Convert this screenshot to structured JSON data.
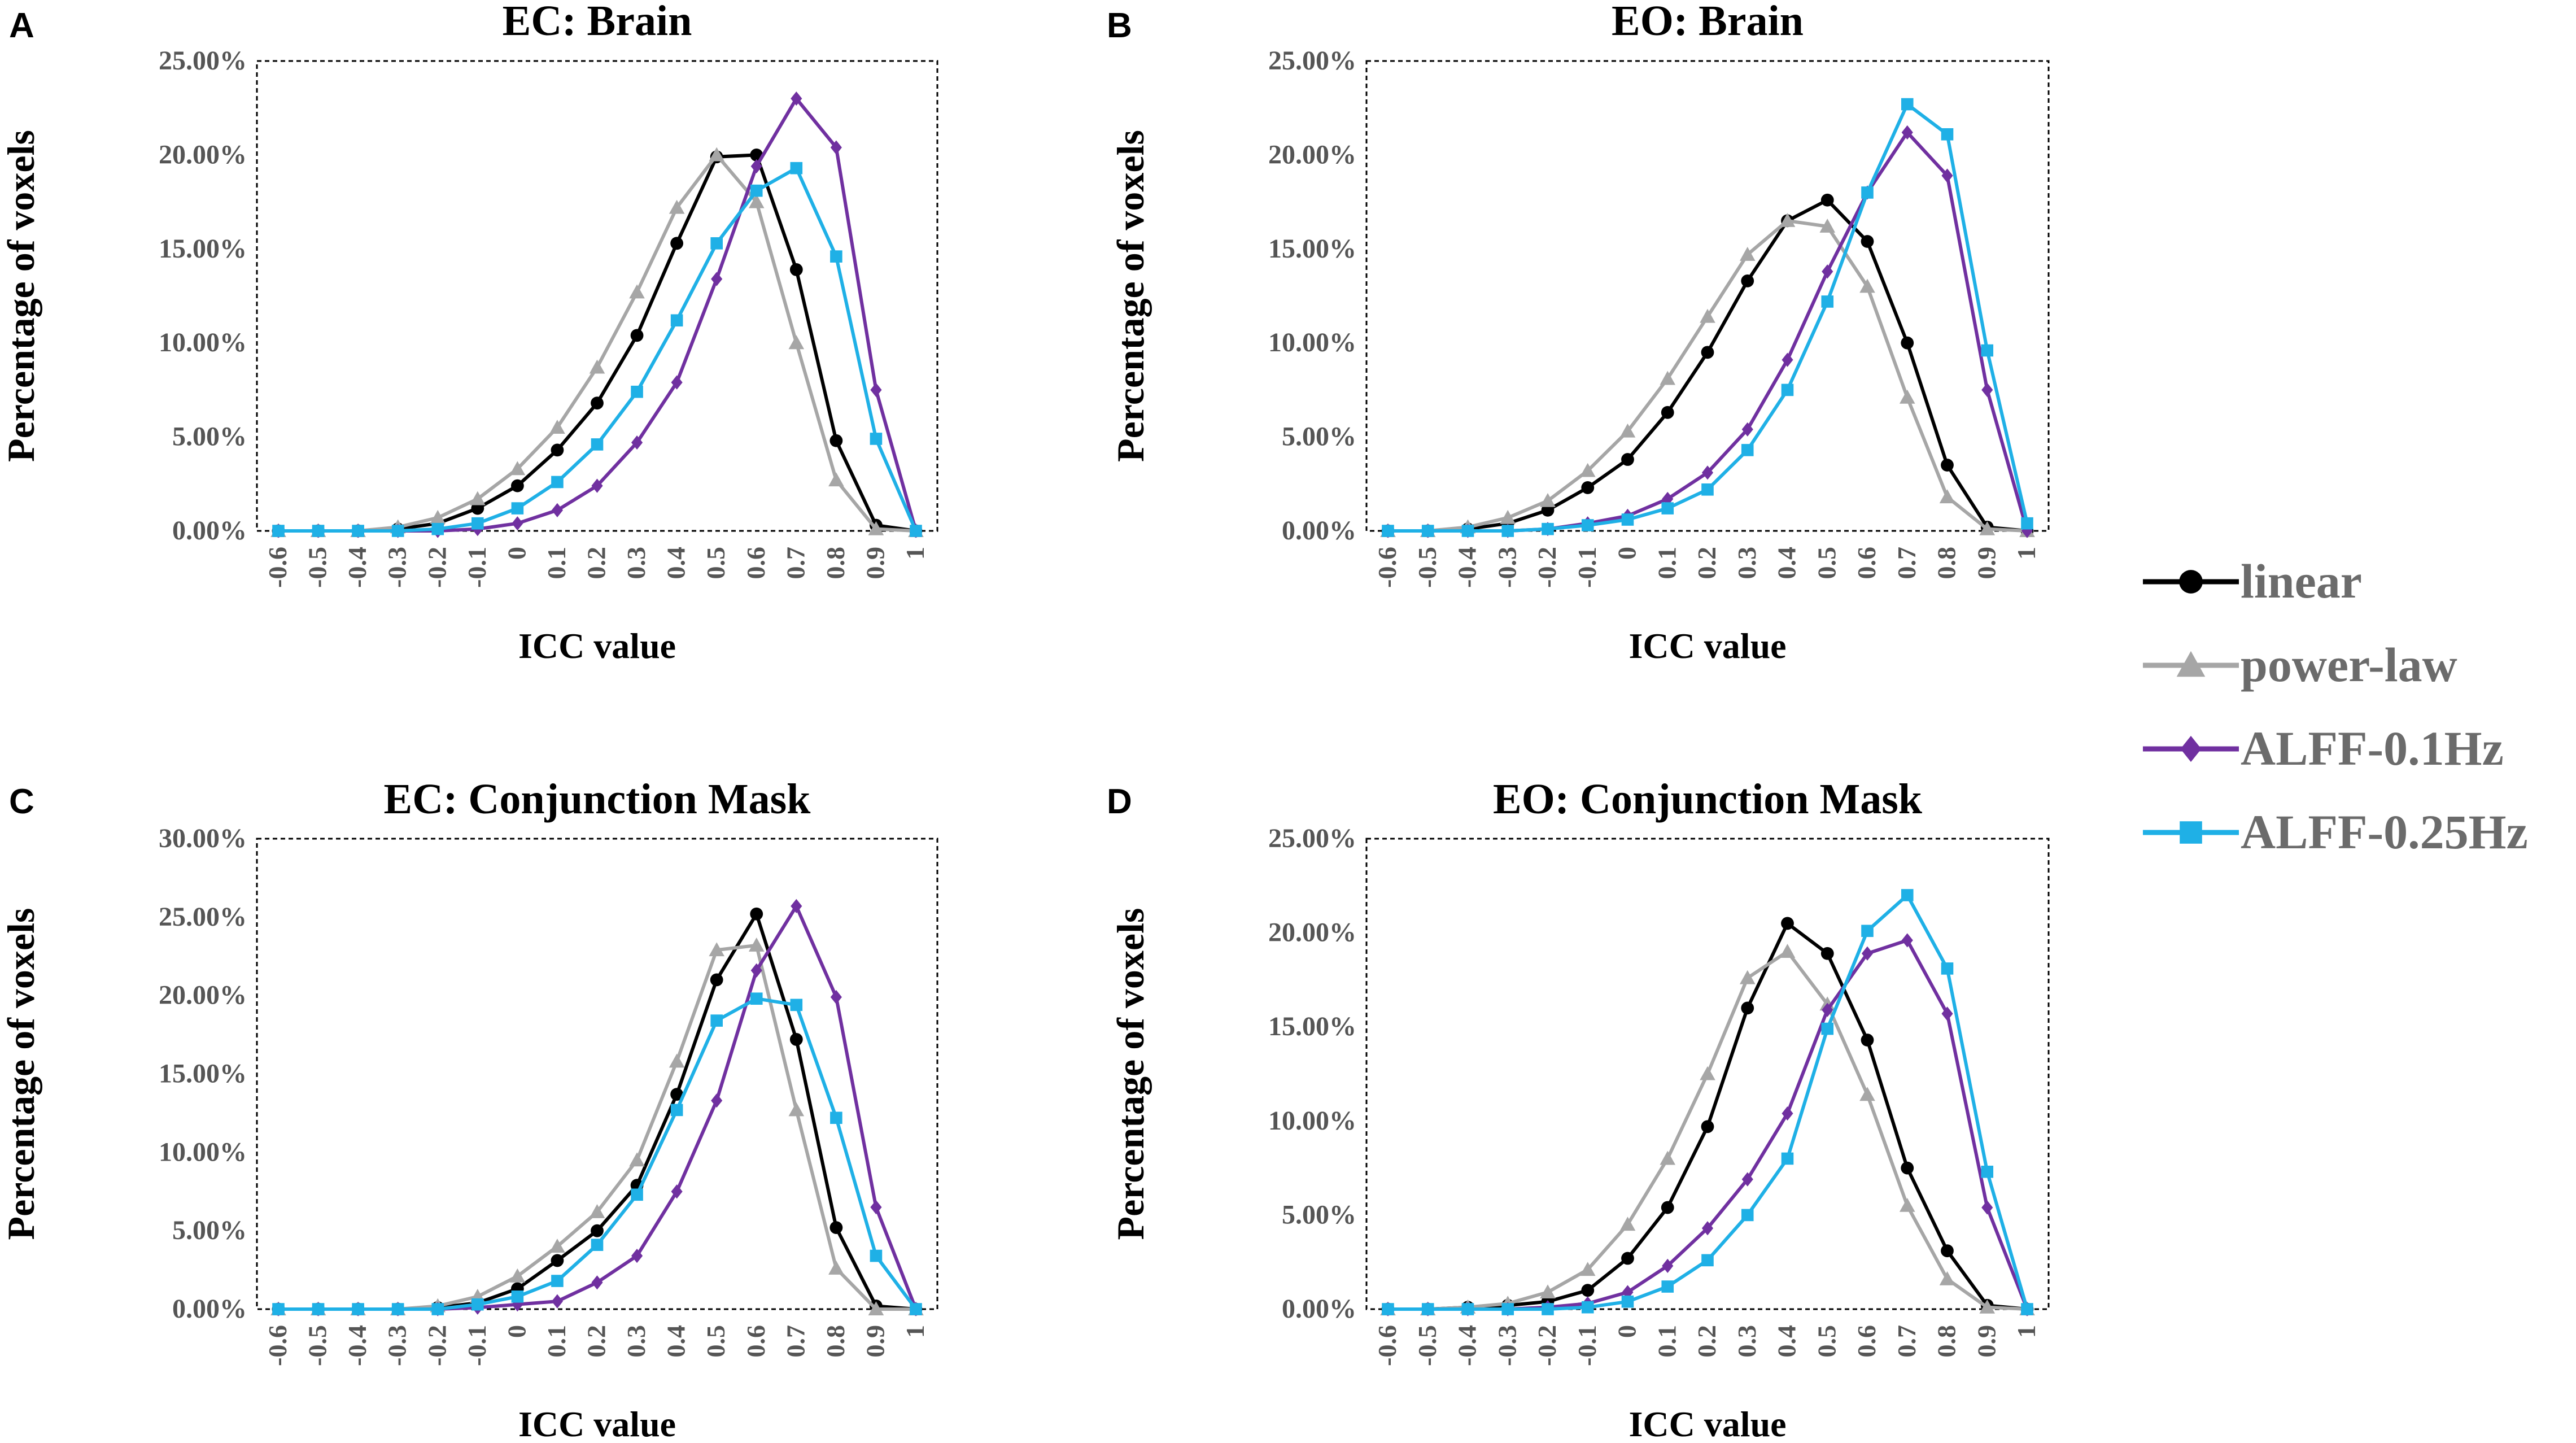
{
  "x_categories": [
    "-0.6",
    "-0.5",
    "-0.4",
    "-0.3",
    "-0.2",
    "-0.1",
    "0",
    "0.1",
    "0.2",
    "0.3",
    "0.4",
    "0.5",
    "0.6",
    "0.7",
    "0.8",
    "0.9",
    "1"
  ],
  "legend": {
    "entries": [
      {
        "name": "linear",
        "color": "#000000",
        "marker": "circle"
      },
      {
        "name": "power-law",
        "color": "#a6a6a6",
        "marker": "triangle"
      },
      {
        "name": "ALFF-0.1Hz",
        "color": "#7030a0",
        "marker": "diamond"
      },
      {
        "name": "ALFF-0.25Hz",
        "color": "#1fb0e6",
        "marker": "square"
      }
    ]
  },
  "chart_data": [
    {
      "panel_letter": "A",
      "type": "line",
      "title": "EC: Brain",
      "xlabel": "ICC value",
      "ylabel": "Percentage of voxels",
      "ylim": [
        0,
        25
      ],
      "yticks": [
        "0.00%",
        "5.00%",
        "10.00%",
        "15.00%",
        "20.00%",
        "25.00%"
      ],
      "categories": [
        "-0.6",
        "-0.5",
        "-0.4",
        "-0.3",
        "-0.2",
        "-0.1",
        "0",
        "0.1",
        "0.2",
        "0.3",
        "0.4",
        "0.5",
        "0.6",
        "0.7",
        "0.8",
        "0.9",
        "1"
      ],
      "series": [
        {
          "name": "linear",
          "values": [
            0,
            0,
            0,
            0.1,
            0.4,
            1.2,
            2.4,
            4.3,
            6.8,
            10.4,
            15.3,
            19.9,
            20.0,
            13.9,
            4.8,
            0.3,
            0
          ]
        },
        {
          "name": "power-law",
          "values": [
            0,
            0,
            0,
            0.2,
            0.7,
            1.7,
            3.3,
            5.5,
            8.7,
            12.7,
            17.2,
            20.0,
            17.5,
            10.0,
            2.7,
            0.1,
            0
          ]
        },
        {
          "name": "ALFF-0.1Hz",
          "values": [
            0,
            0,
            0,
            0,
            0,
            0.1,
            0.4,
            1.1,
            2.4,
            4.7,
            7.9,
            13.4,
            19.4,
            23.0,
            20.4,
            7.5,
            0
          ]
        },
        {
          "name": "ALFF-0.25Hz",
          "values": [
            0,
            0,
            0,
            0,
            0.1,
            0.4,
            1.2,
            2.6,
            4.6,
            7.4,
            11.2,
            15.3,
            18.1,
            19.3,
            14.6,
            4.9,
            0
          ]
        }
      ]
    },
    {
      "panel_letter": "B",
      "type": "line",
      "title": "EO: Brain",
      "xlabel": "ICC value",
      "ylabel": "Percentage of voxels",
      "ylim": [
        0,
        25
      ],
      "yticks": [
        "0.00%",
        "5.00%",
        "10.00%",
        "15.00%",
        "20.00%",
        "25.00%"
      ],
      "categories": [
        "-0.6",
        "-0.5",
        "-0.4",
        "-0.3",
        "-0.2",
        "-0.1",
        "0",
        "0.1",
        "0.2",
        "0.3",
        "0.4",
        "0.5",
        "0.6",
        "0.7",
        "0.8",
        "0.9",
        "1"
      ],
      "series": [
        {
          "name": "linear",
          "values": [
            0,
            0,
            0.1,
            0.4,
            1.1,
            2.3,
            3.8,
            6.3,
            9.5,
            13.3,
            16.5,
            17.6,
            15.4,
            10.0,
            3.5,
            0.2,
            0
          ]
        },
        {
          "name": "power-law",
          "values": [
            0,
            0,
            0.2,
            0.7,
            1.6,
            3.2,
            5.3,
            8.1,
            11.4,
            14.7,
            16.5,
            16.2,
            13.0,
            7.1,
            1.8,
            0.1,
            0
          ]
        },
        {
          "name": "ALFF-0.1Hz",
          "values": [
            0,
            0,
            0,
            0,
            0.1,
            0.4,
            0.8,
            1.7,
            3.1,
            5.4,
            9.1,
            13.8,
            18.0,
            21.2,
            18.9,
            7.5,
            0
          ]
        },
        {
          "name": "ALFF-0.25Hz",
          "values": [
            0,
            0,
            0,
            0,
            0.1,
            0.3,
            0.6,
            1.2,
            2.2,
            4.3,
            7.5,
            12.2,
            18.0,
            22.7,
            21.1,
            9.6,
            0.4
          ]
        }
      ]
    },
    {
      "panel_letter": "C",
      "type": "line",
      "title": "EC: Conjunction Mask",
      "xlabel": "ICC value",
      "ylabel": "Percentage of voxels",
      "ylim": [
        0,
        30
      ],
      "yticks": [
        "0.00%",
        "5.00%",
        "10.00%",
        "15.00%",
        "20.00%",
        "25.00%",
        "30.00%"
      ],
      "categories": [
        "-0.6",
        "-0.5",
        "-0.4",
        "-0.3",
        "-0.2",
        "-0.1",
        "0",
        "0.1",
        "0.2",
        "0.3",
        "0.4",
        "0.5",
        "0.6",
        "0.7",
        "0.8",
        "0.9",
        "1"
      ],
      "series": [
        {
          "name": "linear",
          "values": [
            0,
            0,
            0,
            0,
            0.1,
            0.4,
            1.3,
            3.1,
            5.0,
            7.9,
            13.7,
            21.0,
            25.2,
            17.2,
            5.2,
            0.2,
            0
          ]
        },
        {
          "name": "power-law",
          "values": [
            0,
            0,
            0,
            0,
            0.2,
            0.8,
            2.1,
            4.0,
            6.2,
            9.5,
            15.8,
            22.9,
            23.2,
            12.7,
            2.6,
            0,
            0
          ]
        },
        {
          "name": "ALFF-0.1Hz",
          "values": [
            0,
            0,
            0,
            0,
            0,
            0.1,
            0.3,
            0.5,
            1.7,
            3.4,
            7.5,
            13.3,
            21.6,
            25.7,
            19.9,
            6.5,
            0
          ]
        },
        {
          "name": "ALFF-0.25Hz",
          "values": [
            0,
            0,
            0,
            0,
            0,
            0.3,
            0.8,
            1.8,
            4.1,
            7.3,
            12.7,
            18.4,
            19.8,
            19.4,
            12.2,
            3.4,
            0
          ]
        }
      ]
    },
    {
      "panel_letter": "D",
      "type": "line",
      "title": "EO: Conjunction Mask",
      "xlabel": "ICC value",
      "ylabel": "Percentage of voxels",
      "ylim": [
        0,
        25
      ],
      "yticks": [
        "0.00%",
        "5.00%",
        "10.00%",
        "15.00%",
        "20.00%",
        "25.00%"
      ],
      "categories": [
        "-0.6",
        "-0.5",
        "-0.4",
        "-0.3",
        "-0.2",
        "-0.1",
        "0",
        "0.1",
        "0.2",
        "0.3",
        "0.4",
        "0.5",
        "0.6",
        "0.7",
        "0.8",
        "0.9",
        "1"
      ],
      "series": [
        {
          "name": "linear",
          "values": [
            0,
            0,
            0.1,
            0.2,
            0.4,
            1.0,
            2.7,
            5.4,
            9.7,
            16.0,
            20.5,
            18.9,
            14.3,
            7.5,
            3.1,
            0.2,
            0
          ]
        },
        {
          "name": "power-law",
          "values": [
            0,
            0,
            0.1,
            0.3,
            0.9,
            2.1,
            4.5,
            8.0,
            12.5,
            17.6,
            19.0,
            16.2,
            11.4,
            5.5,
            1.6,
            0.1,
            0
          ]
        },
        {
          "name": "ALFF-0.1Hz",
          "values": [
            0,
            0,
            0,
            0,
            0.1,
            0.3,
            0.9,
            2.3,
            4.3,
            6.9,
            10.4,
            15.9,
            18.9,
            19.6,
            15.7,
            5.4,
            0
          ]
        },
        {
          "name": "ALFF-0.25Hz",
          "values": [
            0,
            0,
            0,
            0,
            0,
            0.1,
            0.4,
            1.2,
            2.6,
            5.0,
            8.0,
            14.9,
            20.1,
            22.0,
            18.1,
            7.3,
            0
          ]
        }
      ]
    }
  ]
}
